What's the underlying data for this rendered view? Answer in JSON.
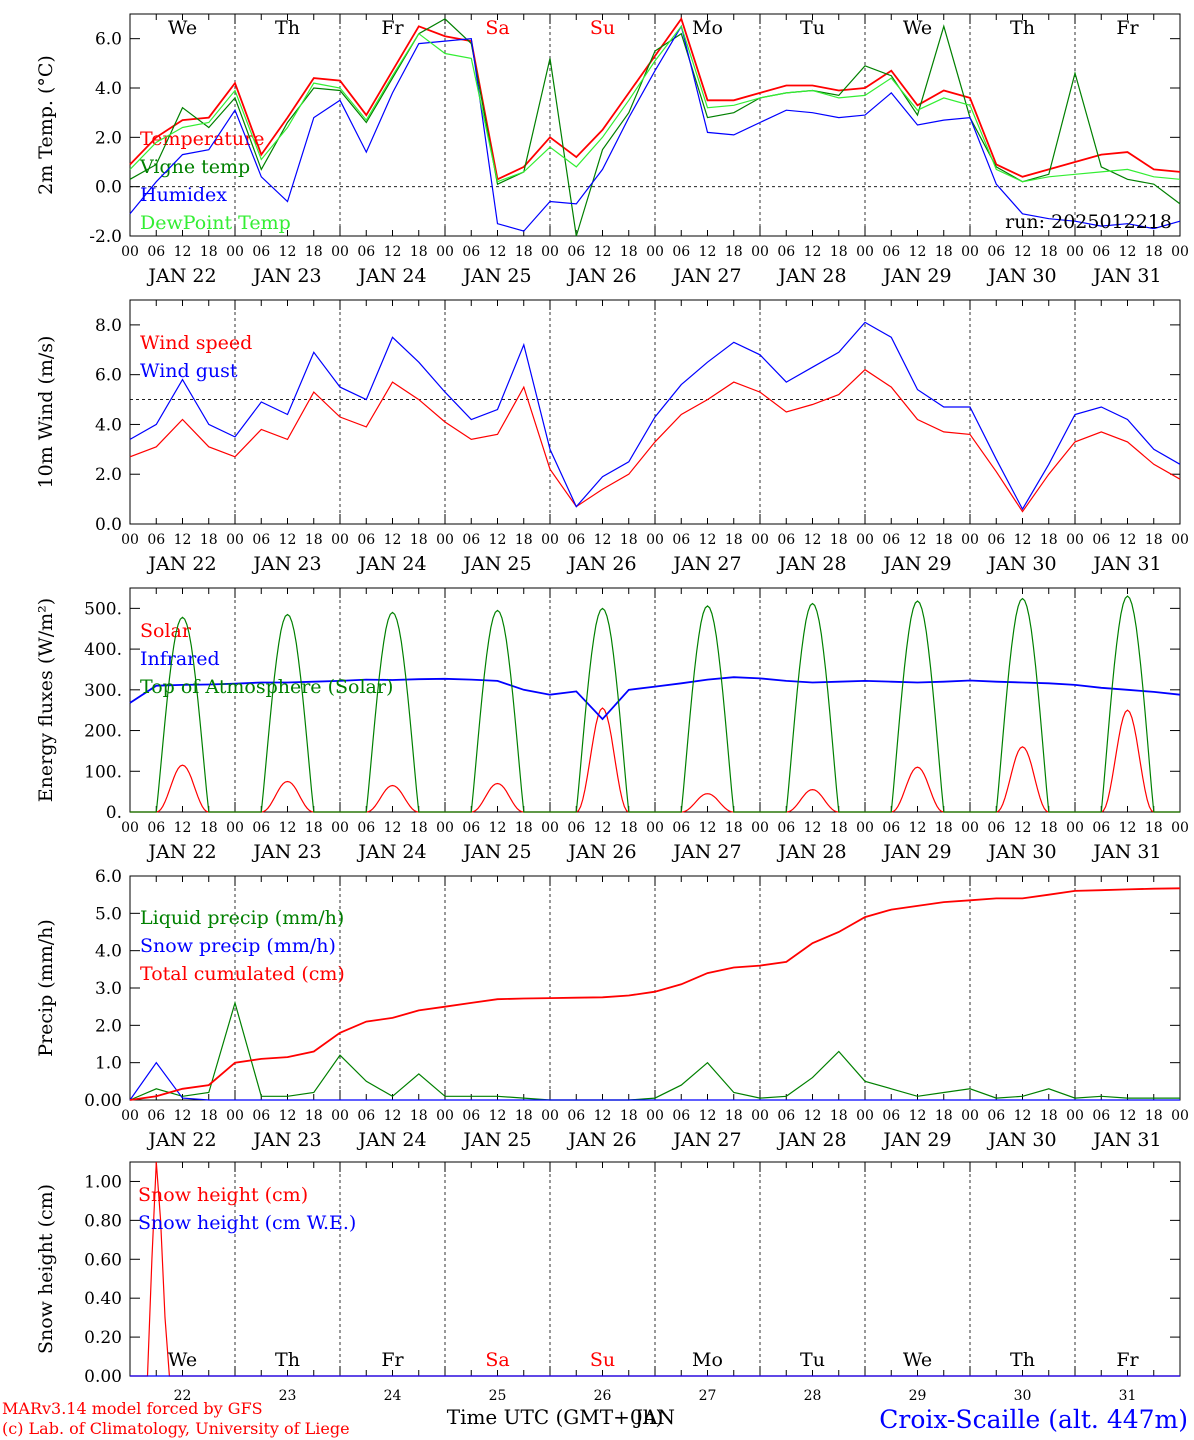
{
  "run_label": "run: 2025012218",
  "footer": {
    "model_line": "MARv3.14 model forced by GFS",
    "lab_line": "(c) Lab. of Climatology, University of Liege",
    "xlabel": "Time UTC (GMT+0h)",
    "xlabel_extra": "JAN",
    "station": "Croix-Scaille (alt. 447m)"
  },
  "days": {
    "weekday_labels": [
      "We",
      "Th",
      "Fr",
      "Sa",
      "Su",
      "Mo",
      "Tu",
      "We",
      "Th",
      "Fr"
    ],
    "weekend_flags": [
      false,
      false,
      false,
      true,
      true,
      false,
      false,
      false,
      false,
      false
    ],
    "date_labels": [
      "JAN 22",
      "JAN 23",
      "JAN 24",
      "JAN 25",
      "JAN 26",
      "JAN 27",
      "JAN 28",
      "JAN 29",
      "JAN 30",
      "JAN 31"
    ],
    "day_numbers": [
      "22",
      "23",
      "24",
      "25",
      "26",
      "27",
      "28",
      "29",
      "30",
      "31"
    ],
    "hour_ticks": [
      "00",
      "06",
      "12",
      "18"
    ],
    "final_tick": "00"
  },
  "colors": {
    "red": "#ff0000",
    "green": "#008000",
    "blue": "#0000ff",
    "lightgreen": "#33ee33",
    "weekend": "#ff0000"
  },
  "chart_data": [
    {
      "type": "line",
      "ylabel": "2m Temp. (°C)",
      "ylim": [
        -2,
        7
      ],
      "yticks": [
        "-2.0",
        "0.0",
        "2.0",
        "4.0",
        "6.0"
      ],
      "ytick_values": [
        -2,
        0,
        2,
        4,
        6
      ],
      "ref_line": 0,
      "x_unit": "hours since JAN 22 00 UTC",
      "x": [
        0,
        6,
        12,
        18,
        24,
        30,
        36,
        42,
        48,
        54,
        60,
        66,
        72,
        78,
        84,
        90,
        96,
        102,
        108,
        114,
        120,
        126,
        132,
        138,
        144,
        150,
        156,
        162,
        168,
        174,
        180,
        186,
        192,
        198,
        204,
        210,
        216,
        222,
        228,
        234,
        240
      ],
      "series": [
        {
          "name": "Temperature",
          "color": "#ff0000",
          "values": [
            0.9,
            2.0,
            2.7,
            2.8,
            4.2,
            1.3,
            2.8,
            4.4,
            4.3,
            2.9,
            4.7,
            6.5,
            6.1,
            5.9,
            0.3,
            0.8,
            2.0,
            1.2,
            2.3,
            3.8,
            5.3,
            6.8,
            3.5,
            3.5,
            3.8,
            4.1,
            4.1,
            3.9,
            4.0,
            4.7,
            3.3,
            3.9,
            3.6,
            0.9,
            0.4,
            0.7,
            1.0,
            1.3,
            1.4,
            0.7,
            0.6
          ]
        },
        {
          "name": "Vigne temp",
          "color": "#008000",
          "values": [
            0.3,
            0.9,
            3.2,
            2.4,
            3.6,
            0.7,
            2.6,
            4.0,
            3.9,
            2.6,
            4.4,
            6.2,
            6.8,
            5.8,
            0.1,
            0.6,
            5.2,
            -2.0,
            1.5,
            3.0,
            5.5,
            6.2,
            2.8,
            3.0,
            3.6,
            3.8,
            3.9,
            3.7,
            4.9,
            4.5,
            2.9,
            6.5,
            2.8,
            0.8,
            0.2,
            0.5,
            4.6,
            0.8,
            0.3,
            0.1,
            -0.7
          ]
        },
        {
          "name": "Humidex",
          "color": "#0000ff",
          "values": [
            -1.1,
            0.2,
            1.3,
            1.5,
            3.1,
            0.4,
            -0.6,
            2.8,
            3.5,
            1.4,
            3.8,
            5.8,
            5.9,
            6.0,
            -1.5,
            -1.8,
            -0.6,
            -0.7,
            0.7,
            2.8,
            4.7,
            6.5,
            2.2,
            2.1,
            2.6,
            3.1,
            3.0,
            2.8,
            2.9,
            3.8,
            2.5,
            2.7,
            2.8,
            0.1,
            -1.1,
            -1.3,
            -1.4,
            -1.6,
            -1.5,
            -1.7,
            -1.4
          ]
        },
        {
          "name": "DewPoint Temp",
          "color": "#33ee33",
          "values": [
            0.7,
            1.8,
            2.4,
            2.6,
            3.9,
            1.1,
            2.4,
            4.2,
            4.0,
            2.7,
            4.5,
            6.2,
            5.4,
            5.2,
            0.2,
            0.6,
            1.6,
            0.8,
            2.0,
            3.5,
            5.1,
            6.5,
            3.2,
            3.3,
            3.6,
            3.8,
            3.9,
            3.6,
            3.7,
            4.4,
            3.1,
            3.6,
            3.3,
            0.7,
            0.2,
            0.4,
            0.5,
            0.6,
            0.7,
            0.4,
            0.3
          ]
        }
      ]
    },
    {
      "type": "line",
      "ylabel": "10m Wind (m/s)",
      "ylim": [
        0,
        9
      ],
      "yticks": [
        "0.0",
        "2.0",
        "4.0",
        "6.0",
        "8.0"
      ],
      "ytick_values": [
        0,
        2,
        4,
        6,
        8
      ],
      "ref_line": 5,
      "x": [
        0,
        6,
        12,
        18,
        24,
        30,
        36,
        42,
        48,
        54,
        60,
        66,
        72,
        78,
        84,
        90,
        96,
        102,
        108,
        114,
        120,
        126,
        132,
        138,
        144,
        150,
        156,
        162,
        168,
        174,
        180,
        186,
        192,
        198,
        204,
        210,
        216,
        222,
        228,
        234,
        240
      ],
      "series": [
        {
          "name": "Wind speed",
          "color": "#ff0000",
          "values": [
            2.7,
            3.1,
            4.2,
            3.1,
            2.7,
            3.8,
            3.4,
            5.3,
            4.3,
            3.9,
            5.7,
            5.0,
            4.1,
            3.4,
            3.6,
            5.5,
            2.2,
            0.7,
            1.4,
            2.0,
            3.3,
            4.4,
            5.0,
            5.7,
            5.3,
            4.5,
            4.8,
            5.2,
            6.2,
            5.5,
            4.2,
            3.7,
            3.6,
            2.1,
            0.5,
            2.0,
            3.3,
            3.7,
            3.3,
            2.4,
            1.8
          ]
        },
        {
          "name": "Wind gust",
          "color": "#0000ff",
          "values": [
            3.4,
            4.0,
            5.8,
            4.0,
            3.5,
            4.9,
            4.4,
            6.9,
            5.5,
            5.0,
            7.5,
            6.5,
            5.3,
            4.2,
            4.6,
            7.2,
            3.0,
            0.7,
            1.9,
            2.5,
            4.3,
            5.6,
            6.5,
            7.3,
            6.8,
            5.7,
            6.3,
            6.9,
            8.1,
            7.5,
            5.4,
            4.7,
            4.7,
            2.6,
            0.6,
            2.4,
            4.4,
            4.7,
            4.2,
            3.0,
            2.4
          ]
        }
      ]
    },
    {
      "type": "line",
      "ylabel": "Energy fluxes (W/m²)",
      "ylim": [
        0,
        550
      ],
      "yticks": [
        "0.",
        "100.",
        "200.",
        "300.",
        "400.",
        "500."
      ],
      "ytick_values": [
        0,
        100,
        200,
        300,
        400,
        500
      ],
      "x": [
        0,
        6,
        12,
        18,
        24,
        30,
        36,
        42,
        48,
        54,
        60,
        66,
        72,
        78,
        84,
        90,
        96,
        102,
        108,
        114,
        120,
        126,
        132,
        138,
        144,
        150,
        156,
        162,
        168,
        174,
        180,
        186,
        192,
        198,
        204,
        210,
        216,
        222,
        228,
        234,
        240
      ],
      "series": [
        {
          "name": "Solar",
          "color": "#ff0000",
          "peaks": [
            115,
            75,
            65,
            70,
            255,
            45,
            55,
            110,
            160,
            250
          ]
        },
        {
          "name": "Infrared",
          "color": "#0000ff",
          "values": [
            268,
            310,
            312,
            313,
            315,
            318,
            318,
            320,
            322,
            325,
            324,
            326,
            327,
            325,
            322,
            300,
            288,
            296,
            228,
            300,
            308,
            316,
            325,
            331,
            328,
            322,
            318,
            320,
            322,
            320,
            318,
            320,
            323,
            320,
            318,
            316,
            312,
            305,
            300,
            295,
            288
          ]
        },
        {
          "name": "Top of Atmosphere (Solar)",
          "color": "#008000",
          "peaks": [
            478,
            485,
            490,
            495,
            500,
            506,
            512,
            518,
            524,
            530
          ]
        }
      ]
    },
    {
      "type": "line",
      "ylabel": "Precip (mm/h)",
      "ylim": [
        0,
        6
      ],
      "yticks": [
        "0.00",
        "1.0",
        "2.0",
        "3.0",
        "4.0",
        "5.0",
        "6.0"
      ],
      "ytick_values": [
        0,
        1,
        2,
        3,
        4,
        5,
        6
      ],
      "x": [
        0,
        6,
        12,
        18,
        24,
        30,
        36,
        42,
        48,
        54,
        60,
        66,
        72,
        78,
        84,
        90,
        96,
        102,
        108,
        114,
        120,
        126,
        132,
        138,
        144,
        150,
        156,
        162,
        168,
        174,
        180,
        186,
        192,
        198,
        204,
        210,
        216,
        222,
        228,
        234,
        240
      ],
      "series": [
        {
          "name": "Liquid precip (mm/h)",
          "color": "#008000",
          "values": [
            0,
            0.3,
            0.1,
            0.2,
            2.6,
            0.1,
            0.1,
            0.2,
            1.2,
            0.5,
            0.1,
            0.7,
            0.1,
            0.1,
            0.1,
            0.05,
            0,
            0,
            0,
            0,
            0.05,
            0.4,
            1.0,
            0.2,
            0.05,
            0.1,
            0.6,
            1.3,
            0.5,
            0.3,
            0.1,
            0.2,
            0.3,
            0.05,
            0.1,
            0.3,
            0.05,
            0.1,
            0.05,
            0.05,
            0.05
          ]
        },
        {
          "name": "Snow precip (mm/h)",
          "color": "#0000ff",
          "values": [
            0,
            1.0,
            0.05,
            0,
            0,
            0,
            0,
            0,
            0,
            0,
            0,
            0,
            0,
            0,
            0,
            0,
            0,
            0,
            0,
            0,
            0,
            0,
            0,
            0,
            0,
            0,
            0,
            0,
            0,
            0,
            0,
            0,
            0,
            0,
            0,
            0,
            0,
            0,
            0,
            0,
            0
          ]
        },
        {
          "name": "Total cumulated (cm)",
          "color": "#ff0000",
          "values": [
            0,
            0.1,
            0.3,
            0.4,
            1.0,
            1.1,
            1.15,
            1.3,
            1.8,
            2.1,
            2.2,
            2.4,
            2.5,
            2.6,
            2.7,
            2.72,
            2.73,
            2.74,
            2.75,
            2.8,
            2.9,
            3.1,
            3.4,
            3.55,
            3.6,
            3.7,
            4.2,
            4.5,
            4.9,
            5.1,
            5.2,
            5.3,
            5.35,
            5.4,
            5.4,
            5.5,
            5.6,
            5.62,
            5.64,
            5.66,
            5.67
          ]
        }
      ]
    },
    {
      "type": "line",
      "ylabel": "Snow height (cm)",
      "ylim": [
        0,
        1.1
      ],
      "yticks": [
        "0.00",
        "0.20",
        "0.40",
        "0.60",
        "0.80",
        "1.00"
      ],
      "ytick_values": [
        0,
        0.2,
        0.4,
        0.6,
        0.8,
        1.0
      ],
      "x": [
        0,
        3,
        4,
        5,
        6,
        7,
        8,
        9,
        240
      ],
      "series": [
        {
          "name": "Snow height (cm)",
          "color": "#ff0000",
          "values": [
            0,
            0,
            0,
            0.6,
            1.1,
            0.8,
            0.3,
            0,
            0
          ]
        },
        {
          "name": "Snow height (cm W.E.)",
          "color": "#0000ff",
          "values": [
            0,
            0,
            0,
            0,
            0,
            0,
            0,
            0,
            0
          ]
        }
      ]
    }
  ]
}
